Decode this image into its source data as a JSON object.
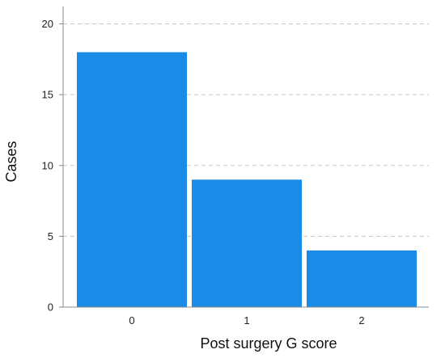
{
  "chart_data": {
    "type": "bar",
    "title": "",
    "xlabel": "Post surgery G score",
    "ylabel": "Cases",
    "categories": [
      "0",
      "1",
      "2"
    ],
    "values": [
      18,
      9,
      4
    ],
    "ylim": [
      0,
      21
    ],
    "yticks": [
      0,
      5,
      10,
      15,
      20
    ],
    "grid": true,
    "legend": "none",
    "bar_color": "#1a8be6",
    "grid_color": "#c8c8c8",
    "axis_color": "#888888"
  }
}
